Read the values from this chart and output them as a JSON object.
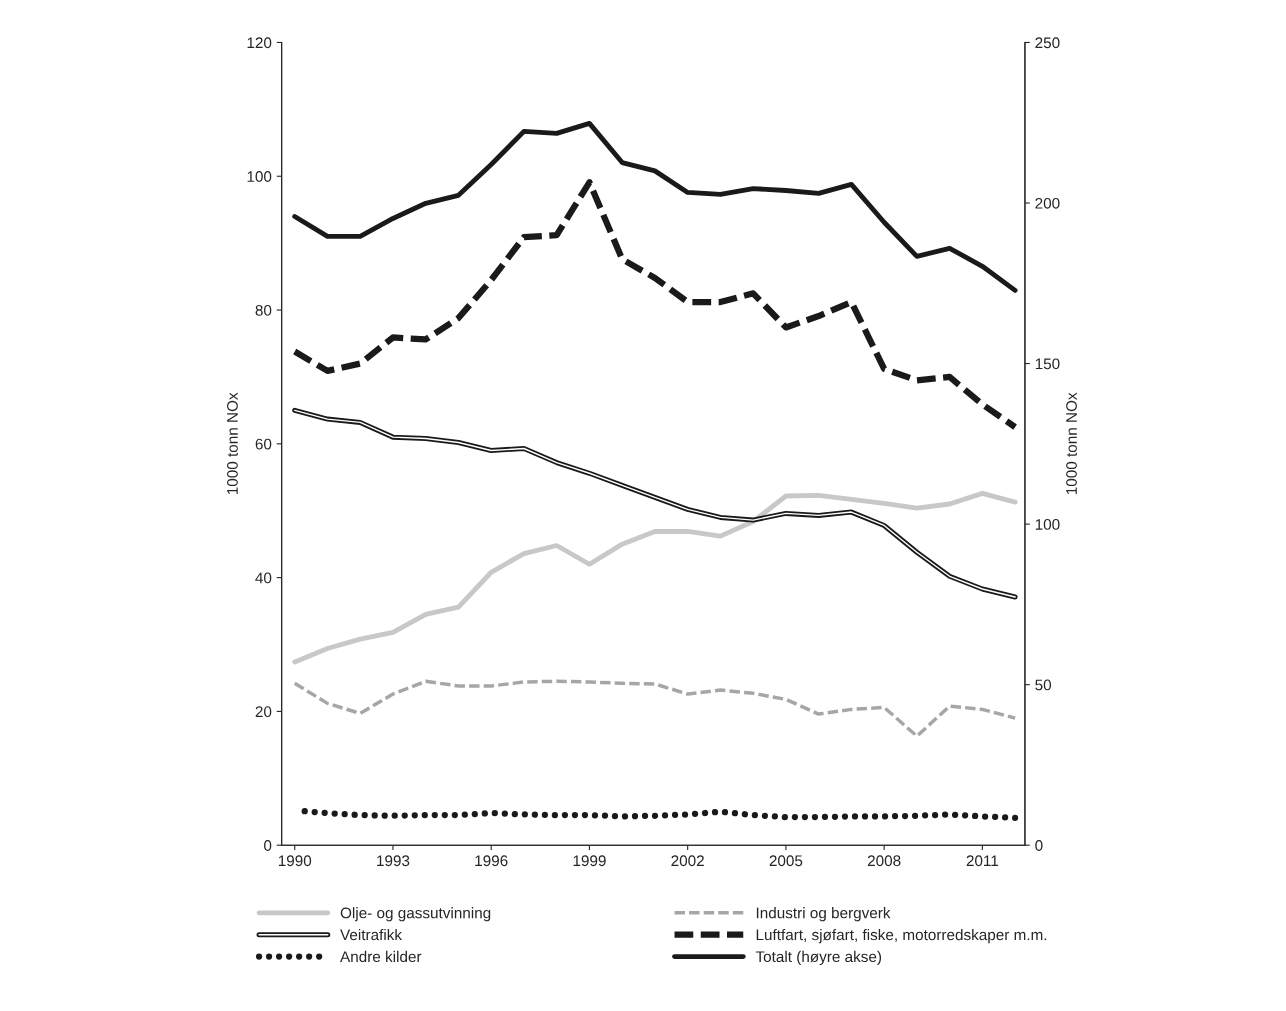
{
  "chart_data": {
    "type": "line",
    "ylabel": "1000 tonn NOx",
    "y2label": "1000 tonn NOx",
    "x": [
      1990,
      1991,
      1992,
      1993,
      1994,
      1995,
      1996,
      1997,
      1998,
      1999,
      2000,
      2001,
      2002,
      2003,
      2004,
      2005,
      2006,
      2007,
      2008,
      2009,
      2010,
      2011,
      2012
    ],
    "xlim": [
      1989.6,
      2012.3
    ],
    "xticks": [
      1990,
      1993,
      1996,
      1999,
      2002,
      2005,
      2008,
      2011
    ],
    "ylim": [
      0,
      120
    ],
    "yticks": [
      0,
      20,
      40,
      60,
      80,
      100,
      120
    ],
    "y2lim": [
      0,
      250
    ],
    "y2ticks": [
      0,
      50,
      100,
      150,
      200,
      250
    ],
    "grid": false,
    "legend": "bottom",
    "marker": "none",
    "series": [
      {
        "name": "Olje- og gassutvinning",
        "color": "#c8c8c8",
        "line_style": "solid",
        "values": [
          27.4,
          29.4,
          30.8,
          31.8,
          34.5,
          35.6,
          40.8,
          43.6,
          44.8,
          42,
          45,
          46.9,
          46.9,
          46.2,
          48.4,
          52.2,
          52.3,
          51.7,
          51.1,
          50.4,
          51,
          52.6,
          51.3
        ]
      },
      {
        "name": "Industri og bergverk",
        "color": "#a6a6a6",
        "line_style": "dashed",
        "values": [
          24.2,
          21.2,
          19.7,
          22.6,
          24.5,
          23.8,
          23.8,
          24.4,
          24.5,
          24.4,
          24.2,
          24.1,
          22.6,
          23.2,
          22.7,
          21.8,
          19.6,
          20.3,
          20.6,
          16.3,
          20.8,
          20.3,
          19
        ]
      },
      {
        "name": "Veitrafikk",
        "color": "#1a1a1a",
        "line_style": "solid",
        "values": [
          65,
          63.7,
          63.2,
          61,
          60.8,
          60.2,
          59,
          59.3,
          57.2,
          55.6,
          53.8,
          52,
          50.2,
          49,
          48.6,
          49.6,
          49.3,
          49.8,
          47.8,
          43.8,
          40.2,
          38.3,
          37.1
        ]
      },
      {
        "name": "Luftfart, sjøfart, fiske, motorredskaper m.m.",
        "color": "#1a1a1a",
        "line_style": "dashed",
        "values": [
          73.8,
          70.9,
          72,
          75.9,
          75.6,
          78.8,
          84.5,
          90.9,
          91.2,
          99.1,
          87.6,
          84.8,
          81.2,
          81.2,
          82.5,
          77.4,
          79.1,
          81.2,
          71.2,
          69.5,
          70,
          65.9,
          62.5
        ]
      },
      {
        "name": "Andre kilder",
        "color": "#1a1a1a",
        "line_style": "dotted",
        "values": [
          5.2,
          4.8,
          4.5,
          4.4,
          4.5,
          4.5,
          4.8,
          4.6,
          4.5,
          4.5,
          4.3,
          4.4,
          4.6,
          5,
          4.5,
          4.2,
          4.2,
          4.3,
          4.3,
          4.4,
          4.6,
          4.3,
          4.1
        ]
      },
      {
        "name": "Totalt (høyre akse)",
        "color": "#1a1a1a",
        "line_style": "solid",
        "axis": "y2",
        "values": [
          195.8,
          189.6,
          189.6,
          195.2,
          199.9,
          202.4,
          212,
          222.3,
          221.7,
          224.8,
          212.6,
          210,
          203.3,
          202.7,
          204.5,
          203.9,
          203,
          205.8,
          194,
          183.4,
          185.9,
          180.3,
          172.8
        ]
      }
    ]
  }
}
